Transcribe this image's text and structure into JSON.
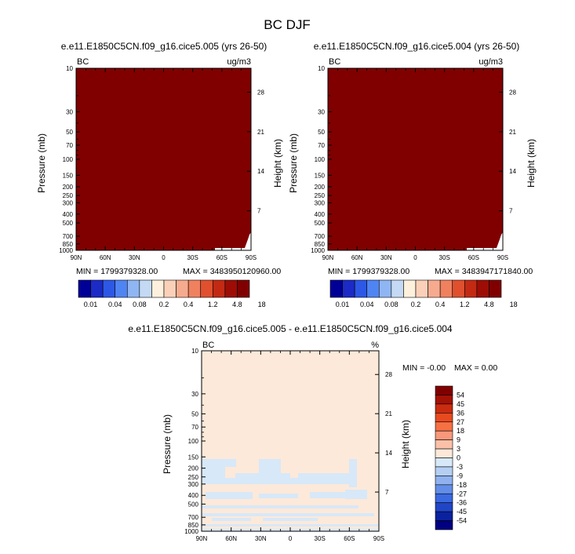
{
  "figure": {
    "title": "BC DJF",
    "colors": {
      "bc_field": "#800000",
      "diff_background": "#fde9d9",
      "diff_blue": "#d7e8f8",
      "frame": "#000000"
    }
  },
  "chart_data": [
    {
      "type": "heatmap",
      "title": "e.e11.E1850C5CN.f09_g16.cice5.005 (yrs 26-50)",
      "variable_label": "BC",
      "units_label": "ug/m3",
      "xlabel": "",
      "ylabel": "Pressure (mb)",
      "right_ylabel": "Height (km)",
      "x_ticks": [
        "90N",
        "60N",
        "30N",
        "0",
        "30S",
        "60S",
        "90S"
      ],
      "y_ticks": [
        "10",
        "30",
        "50",
        "70",
        "100",
        "150",
        "200",
        "250",
        "300",
        "400",
        "500",
        "700",
        "850",
        "1000"
      ],
      "right_ticks": [
        "28",
        "21",
        "14",
        "7"
      ],
      "y_scale": "log pressure",
      "field_value": "all values above 18 (darkest contour)",
      "min_label": "MIN = 1799379328.00",
      "max_label": "MAX = 3483950120960.00",
      "colorbar": {
        "levels": [
          "0.01",
          "0.04",
          "0.08",
          "0.2",
          "0.4",
          "1.2",
          "4.8",
          "18"
        ],
        "colors": [
          "#000096",
          "#1c2bc6",
          "#2d58e6",
          "#4f84f3",
          "#8fb6f2",
          "#c4daf4",
          "#fdf1dd",
          "#fbd0b9",
          "#f6ab8e",
          "#f0815f",
          "#e0502e",
          "#c32a14",
          "#9d0d06",
          "#800000"
        ]
      }
    },
    {
      "type": "heatmap",
      "title": "e.e11.E1850C5CN.f09_g16.cice5.004 (yrs 26-50)",
      "variable_label": "BC",
      "units_label": "ug/m3",
      "xlabel": "",
      "ylabel": "Pressure (mb)",
      "right_ylabel": "Height (km)",
      "x_ticks": [
        "90N",
        "60N",
        "30N",
        "0",
        "30S",
        "60S",
        "90S"
      ],
      "y_ticks": [
        "10",
        "30",
        "50",
        "70",
        "100",
        "150",
        "200",
        "250",
        "300",
        "400",
        "500",
        "700",
        "850",
        "1000"
      ],
      "right_ticks": [
        "28",
        "21",
        "14",
        "7"
      ],
      "y_scale": "log pressure",
      "field_value": "all values above 18 (darkest contour)",
      "min_label": "MIN = 1799379328.00",
      "max_label": "MAX = 3483947171840.00",
      "colorbar": {
        "levels": [
          "0.01",
          "0.04",
          "0.08",
          "0.2",
          "0.4",
          "1.2",
          "4.8",
          "18"
        ],
        "colors": [
          "#000096",
          "#1c2bc6",
          "#2d58e6",
          "#4f84f3",
          "#8fb6f2",
          "#c4daf4",
          "#fdf1dd",
          "#fbd0b9",
          "#f6ab8e",
          "#f0815f",
          "#e0502e",
          "#c32a14",
          "#9d0d06",
          "#800000"
        ]
      }
    },
    {
      "type": "heatmap",
      "title": "e.e11.E1850C5CN.f09_g16.cice5.005 - e.e11.E1850C5CN.f09_g16.cice5.004",
      "variable_label": "BC",
      "units_label": "%",
      "xlabel": "",
      "ylabel": "Pressure (mb)",
      "right_ylabel": "Height (km)",
      "x_ticks": [
        "90N",
        "60N",
        "30N",
        "0",
        "30S",
        "60S",
        "90S"
      ],
      "y_ticks": [
        "10",
        "30",
        "50",
        "70",
        "100",
        "150",
        "200",
        "250",
        "300",
        "400",
        "500",
        "700",
        "850",
        "1000"
      ],
      "right_ticks": [
        "28",
        "21",
        "14",
        "7"
      ],
      "y_scale": "log pressure",
      "field_value": "near zero everywhere (0 to 3 and -3 to 0 bands)",
      "min_label": "MIN =  -0.00",
      "max_label": "MAX =   0.00",
      "colorbar": {
        "levels": [
          "54",
          "45",
          "36",
          "27",
          "18",
          "9",
          "3",
          "0",
          "-3",
          "-9",
          "-18",
          "-27",
          "-36",
          "-45",
          "-54"
        ],
        "colors": [
          "#800000",
          "#a31206",
          "#c92c10",
          "#e84a20",
          "#f57043",
          "#f8977a",
          "#fbc1a8",
          "#fde9d9",
          "#d7e8f8",
          "#b4cff2",
          "#8fb1ee",
          "#628ee8",
          "#3a69e0",
          "#2145c7",
          "#0b229f",
          "#000080"
        ]
      }
    }
  ]
}
